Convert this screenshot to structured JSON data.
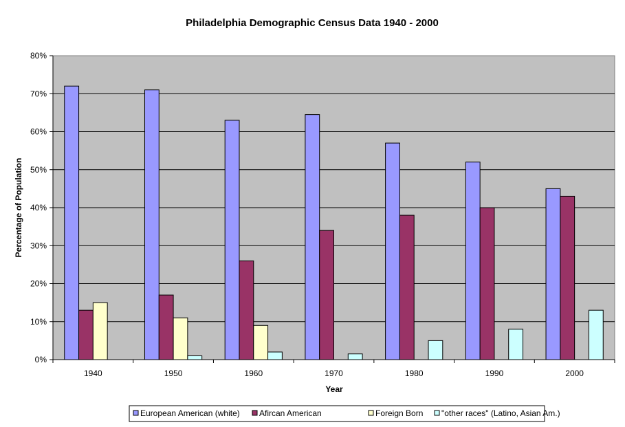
{
  "chart_data": {
    "type": "bar",
    "title": "Philadelphia Demographic Census Data 1940 - 2000",
    "xlabel": "Year",
    "ylabel": "Percentage of Population",
    "categories": [
      "1940",
      "1950",
      "1960",
      "1970",
      "1980",
      "1990",
      "2000"
    ],
    "ylim": [
      0,
      80
    ],
    "yticks": [
      "0%",
      "10%",
      "20%",
      "30%",
      "40%",
      "50%",
      "60%",
      "70%",
      "80%"
    ],
    "grid": true,
    "plot_background": "#c0c0c0",
    "legend_position": "bottom",
    "series": [
      {
        "name": "European American (white)",
        "color": "#9999ff",
        "values": [
          72,
          71,
          63,
          64.5,
          57,
          52,
          45
        ]
      },
      {
        "name": "Afircan American",
        "color": "#993366",
        "values": [
          13,
          17,
          26,
          34,
          38,
          40,
          43
        ]
      },
      {
        "name": "Foreign Born",
        "color": "#ffffcc",
        "values": [
          15,
          11,
          9,
          null,
          null,
          null,
          null
        ]
      },
      {
        "name": "\"other races\" (Latino, Asian Am.)",
        "color": "#ccffff",
        "values": [
          null,
          1,
          2,
          1.5,
          5,
          8,
          13
        ]
      }
    ]
  }
}
